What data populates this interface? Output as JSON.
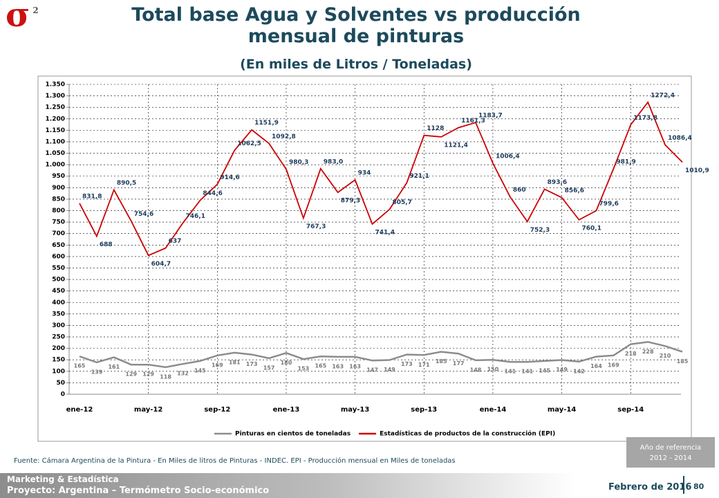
{
  "logo": {
    "symbol": "σ",
    "superscript": "2"
  },
  "chart_data": {
    "type": "line",
    "title": "Total base Agua y Solventes vs producción mensual de pinturas",
    "subtitle": "(En miles de Litros / Toneladas)",
    "categories": [
      "ene-12",
      null,
      null,
      null,
      "may-12",
      null,
      null,
      null,
      "sep-12",
      null,
      null,
      null,
      "ene-13",
      null,
      null,
      null,
      "may-13",
      null,
      null,
      null,
      "sep-13",
      null,
      null,
      null,
      "ene-14",
      null,
      null,
      null,
      "may-14",
      null,
      null,
      null,
      "sep-14",
      null,
      null,
      null
    ],
    "series": [
      {
        "name": "Pinturas en cientos de toneladas",
        "color": "#8c8c8c",
        "values": [
          165,
          139,
          161,
          129,
          129,
          118,
          132,
          145,
          169,
          181,
          173,
          157,
          180,
          153,
          165,
          163,
          163,
          147,
          149,
          173,
          171,
          185,
          177,
          148,
          150,
          141,
          141,
          145,
          149,
          142,
          164,
          169,
          218,
          228,
          210,
          185
        ]
      },
      {
        "name": "Estadísticas de productos de la construcción (EPI)",
        "color": "#cc0000",
        "values": [
          831.8,
          688,
          890.5,
          754.6,
          604.7,
          637,
          746.1,
          844.6,
          914.6,
          1062.5,
          1151.9,
          1092.8,
          980.3,
          767.3,
          983.0,
          879.3,
          934,
          741.4,
          805.7,
          921.1,
          1128,
          1121.4,
          1161.3,
          1183.7,
          1006.4,
          860,
          752.3,
          893.6,
          856.6,
          760.1,
          799.6,
          981.9,
          1173.8,
          1272.4,
          1086.4,
          1010.9
        ],
        "value_labels": [
          "831,8",
          "688",
          "890,5",
          "754,6",
          "604,7",
          "637",
          "746,1",
          "844,6",
          "914,6",
          "1062,5",
          "1151,9",
          "1092,8",
          "980,3",
          "767,3",
          "983,0",
          "879,3",
          "934",
          "741,4",
          "805,7",
          "921,1",
          "1128",
          "1121,4",
          "1161,3",
          "1183,7",
          "1006,4",
          "860",
          "752,3",
          "893,6",
          "856,6",
          "760,1",
          "799,6",
          "981,9",
          "1173,8",
          "1272,4",
          "1086,4",
          "1010,9"
        ]
      }
    ],
    "ylim": [
      0,
      1350
    ],
    "yticks": [
      0,
      50,
      100,
      150,
      200,
      250,
      300,
      350,
      400,
      450,
      500,
      550,
      600,
      650,
      700,
      750,
      800,
      850,
      900,
      950,
      {
        "value": 1000,
        "label": "1.000"
      },
      {
        "value": 1050,
        "label": "1.050"
      },
      {
        "value": 1100,
        "label": "1.100"
      },
      {
        "value": 1150,
        "label": "1.150"
      },
      {
        "value": 1200,
        "label": "1.200"
      },
      {
        "value": 1250,
        "label": "1.250"
      },
      {
        "value": 1300,
        "label": "1.300"
      },
      {
        "value": 1350,
        "label": "1.350"
      }
    ],
    "grid": true,
    "legend": "bottom"
  },
  "source": "Fuente: Cámara Argentina de la Pintura - En Miles de litros de Pinturas - INDEC. EPI - Producción mensual en Miles de toneladas",
  "reference": {
    "label": "Año de referencia",
    "period": "2012 - 2014"
  },
  "footer": {
    "department": "Marketing & Estadística",
    "project": "Proyecto: Argentina – Termómetro Socio-económico",
    "date": "Febrero de 2016",
    "page": "80"
  }
}
